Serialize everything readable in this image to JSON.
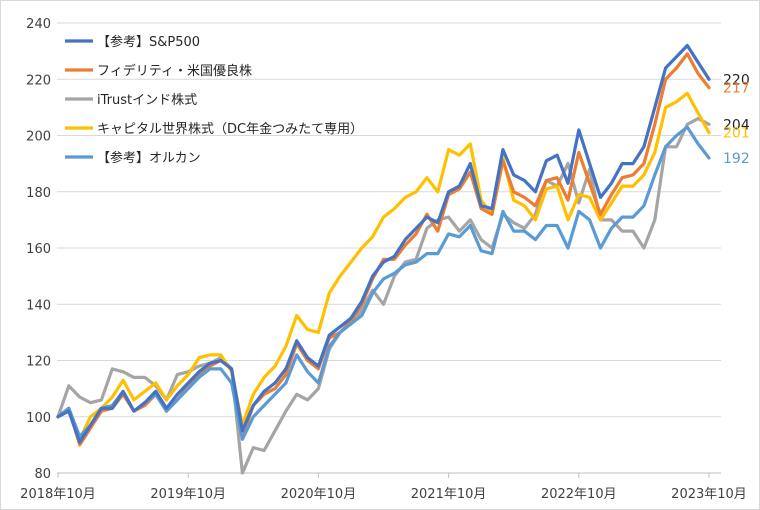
{
  "chart_data": {
    "type": "line",
    "title": "",
    "xlabel": "",
    "ylabel": "",
    "ylim": [
      80,
      240
    ],
    "yticks": [
      80,
      100,
      120,
      140,
      160,
      180,
      200,
      220,
      240
    ],
    "x_start": "2018-10",
    "x_end": "2023-10",
    "xtick_labels": [
      "2018年10月",
      "2019年10月",
      "2020年10月",
      "2021年10月",
      "2022年10月",
      "2023年10月"
    ],
    "grid": "horizontal",
    "legend_position": "top-left",
    "series": [
      {
        "name": "【参考】S&P500",
        "color": "#4472c4",
        "end_label": "220",
        "values": [
          100,
          102,
          91,
          97,
          103,
          103,
          109,
          102,
          105,
          109,
          103,
          108,
          112,
          116,
          119,
          120,
          117,
          95,
          104,
          109,
          112,
          117,
          127,
          121,
          118,
          129,
          132,
          135,
          141,
          150,
          155,
          157,
          163,
          167,
          171,
          169,
          180,
          182,
          190,
          175,
          174,
          195,
          186,
          184,
          180,
          191,
          193,
          183,
          202,
          190,
          178,
          183,
          190,
          190,
          196,
          210,
          224,
          228,
          232,
          226,
          220
        ]
      },
      {
        "name": "フィデリティ・米国優良株",
        "color": "#ed7d31",
        "end_label": "217",
        "values": [
          100,
          103,
          90,
          96,
          102,
          103,
          108,
          102,
          104,
          108,
          102,
          106,
          111,
          115,
          118,
          120,
          117,
          93,
          104,
          108,
          110,
          115,
          126,
          120,
          117,
          128,
          130,
          134,
          140,
          149,
          156,
          156,
          161,
          165,
          172,
          166,
          179,
          181,
          187,
          174,
          172,
          191,
          180,
          178,
          175,
          184,
          185,
          177,
          194,
          183,
          172,
          179,
          185,
          186,
          190,
          204,
          220,
          224,
          229,
          222,
          217
        ]
      },
      {
        "name": "iTrustインド株式",
        "color": "#a5a5a5",
        "end_label": "204",
        "values": [
          100,
          111,
          107,
          105,
          106,
          117,
          116,
          114,
          114,
          111,
          106,
          115,
          116,
          118,
          119,
          121,
          117,
          80,
          89,
          88,
          95,
          102,
          108,
          106,
          110,
          124,
          130,
          133,
          138,
          145,
          140,
          150,
          155,
          156,
          167,
          170,
          171,
          166,
          170,
          163,
          160,
          172,
          169,
          167,
          172,
          184,
          182,
          190,
          176,
          188,
          170,
          170,
          166,
          166,
          160,
          170,
          196,
          196,
          204,
          206,
          204
        ]
      },
      {
        "name": "キャピタル世界株式（DC年金つみたて専用）",
        "color": "#ffc000",
        "end_label": "201",
        "values": [
          100,
          103,
          92,
          100,
          103,
          107,
          113,
          106,
          109,
          112,
          106,
          111,
          115,
          121,
          122,
          122,
          116,
          97,
          108,
          114,
          118,
          125,
          136,
          131,
          130,
          144,
          150,
          155,
          160,
          164,
          171,
          174,
          178,
          180,
          185,
          180,
          195,
          193,
          197,
          177,
          172,
          192,
          177,
          175,
          170,
          181,
          182,
          170,
          179,
          178,
          170,
          176,
          182,
          182,
          186,
          194,
          210,
          212,
          215,
          208,
          201
        ]
      },
      {
        "name": "【参考】オルカン",
        "color": "#5b9bd5",
        "end_label": "192",
        "values": [
          100,
          103,
          93,
          97,
          103,
          104,
          109,
          102,
          105,
          108,
          102,
          106,
          110,
          114,
          117,
          117,
          112,
          92,
          100,
          104,
          108,
          112,
          122,
          116,
          112,
          125,
          130,
          133,
          136,
          144,
          149,
          151,
          154,
          155,
          158,
          158,
          165,
          164,
          168,
          159,
          158,
          173,
          166,
          166,
          163,
          168,
          168,
          160,
          173,
          170,
          160,
          167,
          171,
          171,
          175,
          186,
          196,
          200,
          203,
          197,
          192
        ]
      }
    ]
  }
}
